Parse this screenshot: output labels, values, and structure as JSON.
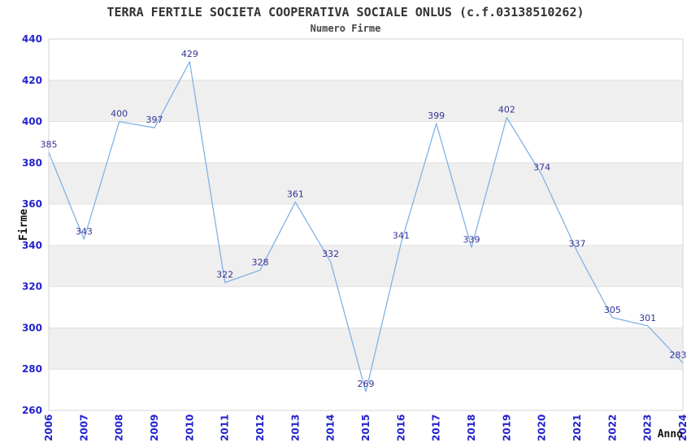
{
  "chart_data": {
    "type": "line",
    "title": "TERRA FERTILE SOCIETA COOPERATIVA SOCIALE ONLUS (c.f.03138510262)",
    "subtitle": "Numero Firme",
    "xlabel": "Anno",
    "ylabel": "Firme",
    "categories": [
      "2006",
      "2007",
      "2008",
      "2009",
      "2010",
      "2011",
      "2012",
      "2013",
      "2014",
      "2015",
      "2016",
      "2017",
      "2018",
      "2019",
      "2020",
      "2021",
      "2022",
      "2023",
      "2024"
    ],
    "series": [
      {
        "name": "Numero Firme",
        "values": [
          385,
          343,
          400,
          397,
          429,
          322,
          328,
          361,
          332,
          269,
          341,
          399,
          339,
          402,
          374,
          337,
          305,
          301,
          283
        ]
      }
    ],
    "ylim": [
      260,
      440
    ],
    "ytick_step": 20,
    "yticks": [
      260,
      280,
      300,
      320,
      340,
      360,
      380,
      400,
      420,
      440
    ],
    "grid": true,
    "band_fill": true,
    "data_labels": true,
    "legend": false,
    "x_labels_rotated_degrees": 90
  },
  "colors": {
    "line": "#80b3e6",
    "tick_label": "#2222cc",
    "data_label": "#333399",
    "band": "#efefef",
    "grid": "#e0e0e0",
    "border": "#d4d4d4",
    "title": "#333333",
    "axis_title": "#111111",
    "background": "#ffffff"
  }
}
